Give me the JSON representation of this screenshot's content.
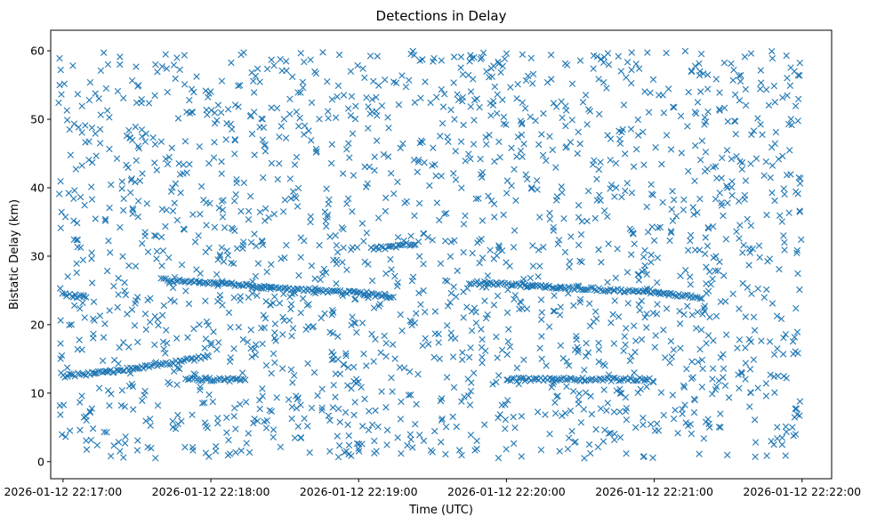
{
  "chart_data": {
    "type": "scatter",
    "title": "Detections in Delay",
    "xlabel": "Time (UTC)",
    "ylabel": "Bistatic Delay (km)",
    "marker": "x",
    "color": "#1f77b4",
    "grid": false,
    "xlim": [
      "2026-01-12 22:16:55",
      "2026-01-12 22:22:12"
    ],
    "ylim": [
      -2.5,
      63
    ],
    "x_ticks": [
      "2026-01-12 22:17:00",
      "2026-01-12 22:18:00",
      "2026-01-12 22:19:00",
      "2026-01-12 22:20:00",
      "2026-01-12 22:21:00",
      "2026-01-12 22:22:00"
    ],
    "y_ticks": [
      0,
      10,
      20,
      30,
      40,
      50,
      60
    ],
    "time_span": [
      "2026-01-12 22:16:58",
      "2026-01-12 22:22:00"
    ],
    "tracks": [
      {
        "t": [
          "22:17:00",
          "22:17:05",
          "22:17:15",
          "22:17:25",
          "22:17:35",
          "22:17:45",
          "22:17:55",
          "22:18:00"
        ],
        "delay": [
          12.5,
          12.7,
          13.0,
          13.4,
          14.0,
          14.5,
          15.1,
          15.5
        ]
      },
      {
        "t": [
          "22:17:40",
          "22:18:00",
          "22:18:20",
          "22:18:40",
          "22:19:00",
          "22:19:15"
        ],
        "delay": [
          26.6,
          26.0,
          25.6,
          25.0,
          24.6,
          24.0
        ]
      },
      {
        "t": [
          "22:19:45",
          "22:20:05",
          "22:20:25",
          "22:20:45",
          "22:21:05",
          "22:21:20"
        ],
        "delay": [
          26.2,
          25.8,
          25.4,
          25.0,
          24.5,
          24.0
        ]
      },
      {
        "t": [
          "22:20:00",
          "22:20:20",
          "22:20:40",
          "22:21:00"
        ],
        "delay": [
          12.0,
          12.0,
          12.0,
          12.0
        ]
      },
      {
        "t": [
          "22:17:50",
          "22:18:00",
          "22:18:15"
        ],
        "delay": [
          12.1,
          12.0,
          11.9
        ]
      },
      {
        "t": [
          "22:17:00",
          "22:17:05",
          "22:17:10"
        ],
        "delay": [
          24.5,
          24.2,
          24.0
        ]
      },
      {
        "t": [
          "22:19:05",
          "22:19:15",
          "22:19:25"
        ],
        "delay": [
          31.0,
          31.5,
          32.0
        ]
      }
    ],
    "clutter_points_approx": 1900,
    "clutter_delay_range": [
      0.5,
      60
    ]
  }
}
